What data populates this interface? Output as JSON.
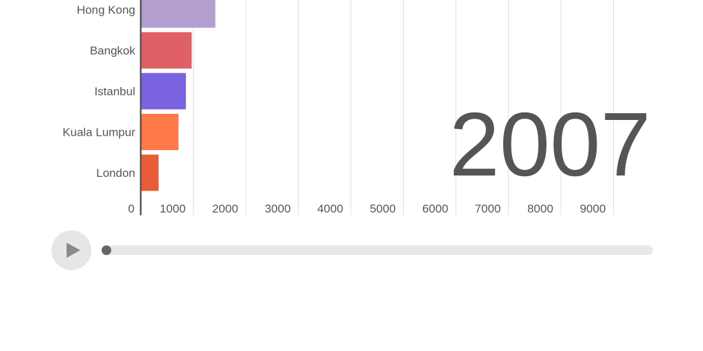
{
  "chart_data": {
    "type": "bar",
    "orientation": "horizontal",
    "categories": [
      "Hong Kong",
      "Bangkok",
      "Istanbul",
      "Kuala Lumpur",
      "London"
    ],
    "values": [
      1420,
      970,
      860,
      720,
      340
    ],
    "colors": [
      "#b39ed0",
      "#e06068",
      "#7b62e0",
      "#ff7a48",
      "#e85c38"
    ],
    "xticks": [
      0,
      1000,
      2000,
      3000,
      4000,
      5000,
      6000,
      7000,
      8000,
      9000
    ],
    "xlim": [
      0,
      9400
    ],
    "grid": true,
    "year": "2007"
  },
  "player": {
    "play_icon": "play-icon",
    "progress": 0
  },
  "colors": {
    "text": "#555555",
    "grid": "#e0e0e0",
    "axis": "#555555",
    "control_bg": "#e6e6e6",
    "track": "#e8e8e8",
    "handle": "#666666"
  }
}
